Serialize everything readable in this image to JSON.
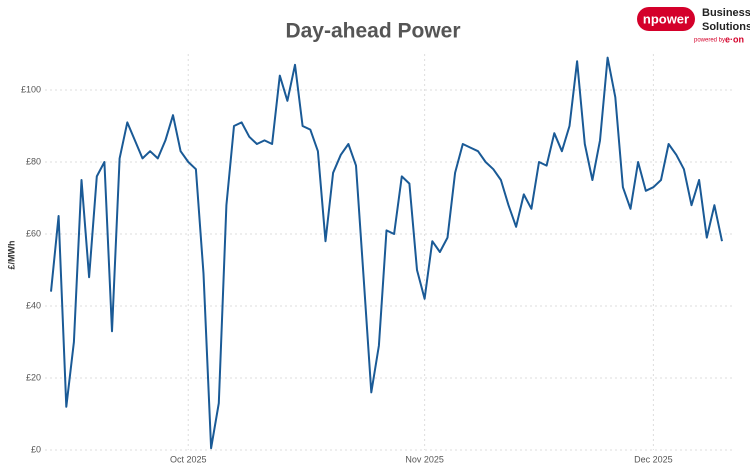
{
  "chart_data": {
    "type": "line",
    "title": "Day-ahead Power",
    "ylabel": "£/MWh",
    "categories": [
      null,
      null,
      null,
      null,
      null,
      null,
      null,
      null,
      null,
      null,
      null,
      null,
      null,
      null,
      null,
      null,
      null,
      null,
      "Oct 2025",
      null,
      null,
      null,
      null,
      null,
      null,
      null,
      null,
      null,
      null,
      null,
      null,
      null,
      null,
      null,
      null,
      null,
      null,
      null,
      null,
      null,
      null,
      null,
      null,
      null,
      null,
      null,
      null,
      null,
      null,
      "Nov 2025",
      null,
      null,
      null,
      null,
      null,
      null,
      null,
      null,
      null,
      null,
      null,
      null,
      null,
      null,
      null,
      null,
      null,
      null,
      null,
      null,
      null,
      null,
      null,
      null,
      null,
      null,
      null,
      null,
      null,
      "Dec 2025",
      null,
      null,
      null,
      null,
      null,
      null,
      null,
      null,
      null
    ],
    "series": [
      {
        "name": "Day-ahead Power",
        "color": "#1a5a96",
        "values": [
          44,
          65,
          12,
          30,
          75,
          48,
          76,
          80,
          33,
          81,
          91,
          86,
          81,
          83,
          81,
          86,
          93,
          83,
          80,
          78,
          49,
          0.5,
          13,
          68,
          90,
          91,
          87,
          85,
          86,
          85,
          104,
          97,
          107,
          90,
          89,
          83,
          58,
          77,
          82,
          85,
          79,
          48,
          16,
          29,
          61,
          60,
          76,
          74,
          50,
          42,
          58,
          55,
          59,
          77,
          85,
          84,
          83,
          80,
          78,
          75,
          68,
          62,
          71,
          67,
          80,
          79,
          88,
          83,
          90,
          108,
          85,
          75,
          86,
          109,
          98,
          73,
          67,
          80,
          72,
          73,
          75,
          85,
          82,
          78,
          68,
          75,
          59,
          68,
          58
        ]
      }
    ],
    "ylim": [
      0,
      110
    ],
    "yticks": [
      {
        "value": 0,
        "label": "£0"
      },
      {
        "value": 20,
        "label": "£20"
      },
      {
        "value": 40,
        "label": "£40"
      },
      {
        "value": 60,
        "label": "£60"
      },
      {
        "value": 80,
        "label": "£80"
      },
      {
        "value": 100,
        "label": "£100"
      }
    ],
    "grid": true
  },
  "logo": {
    "brand": "npower",
    "line1": "Business",
    "line2": "Solutions",
    "powered": "powered by",
    "parent": "e·on"
  }
}
